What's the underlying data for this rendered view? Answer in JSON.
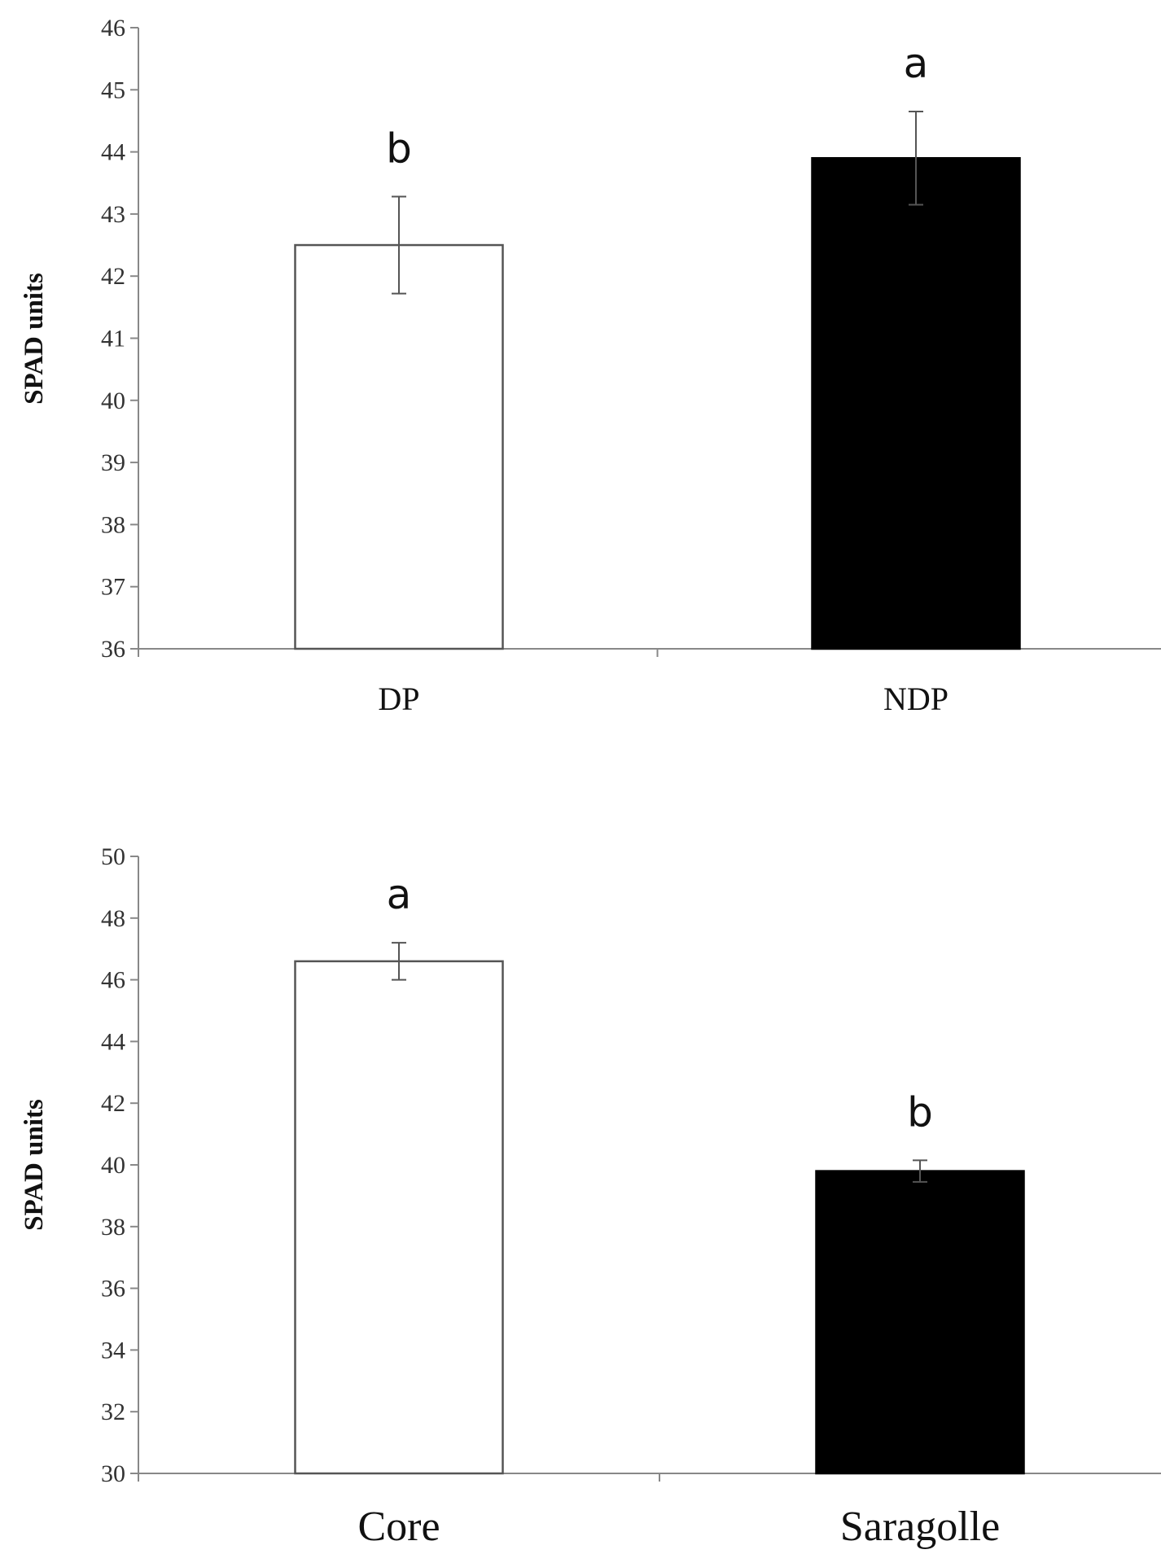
{
  "chart_data": [
    {
      "type": "bar",
      "categories": [
        "DP",
        "NDP"
      ],
      "values": [
        42.5,
        43.9
      ],
      "errors": [
        0.78,
        0.75
      ],
      "significance": [
        "b",
        "a"
      ],
      "bar_colors": [
        "#ffffff",
        "#000000"
      ],
      "ylabel": "SPAD units",
      "xlabel": "",
      "ylim": [
        36,
        46
      ],
      "yticks": [
        36,
        37,
        38,
        39,
        40,
        41,
        42,
        43,
        44,
        45,
        46
      ],
      "grid": false,
      "legend": "none"
    },
    {
      "type": "bar",
      "categories": [
        "Core",
        "Saragolle"
      ],
      "values": [
        46.6,
        39.8
      ],
      "errors": [
        0.6,
        0.35
      ],
      "significance": [
        "a",
        "b"
      ],
      "bar_colors": [
        "#ffffff",
        "#000000"
      ],
      "ylabel": "SPAD units",
      "xlabel": "",
      "ylim": [
        30,
        50
      ],
      "yticks": [
        30,
        32,
        34,
        36,
        38,
        40,
        42,
        44,
        46,
        48,
        50
      ],
      "grid": false,
      "legend": "none"
    }
  ]
}
